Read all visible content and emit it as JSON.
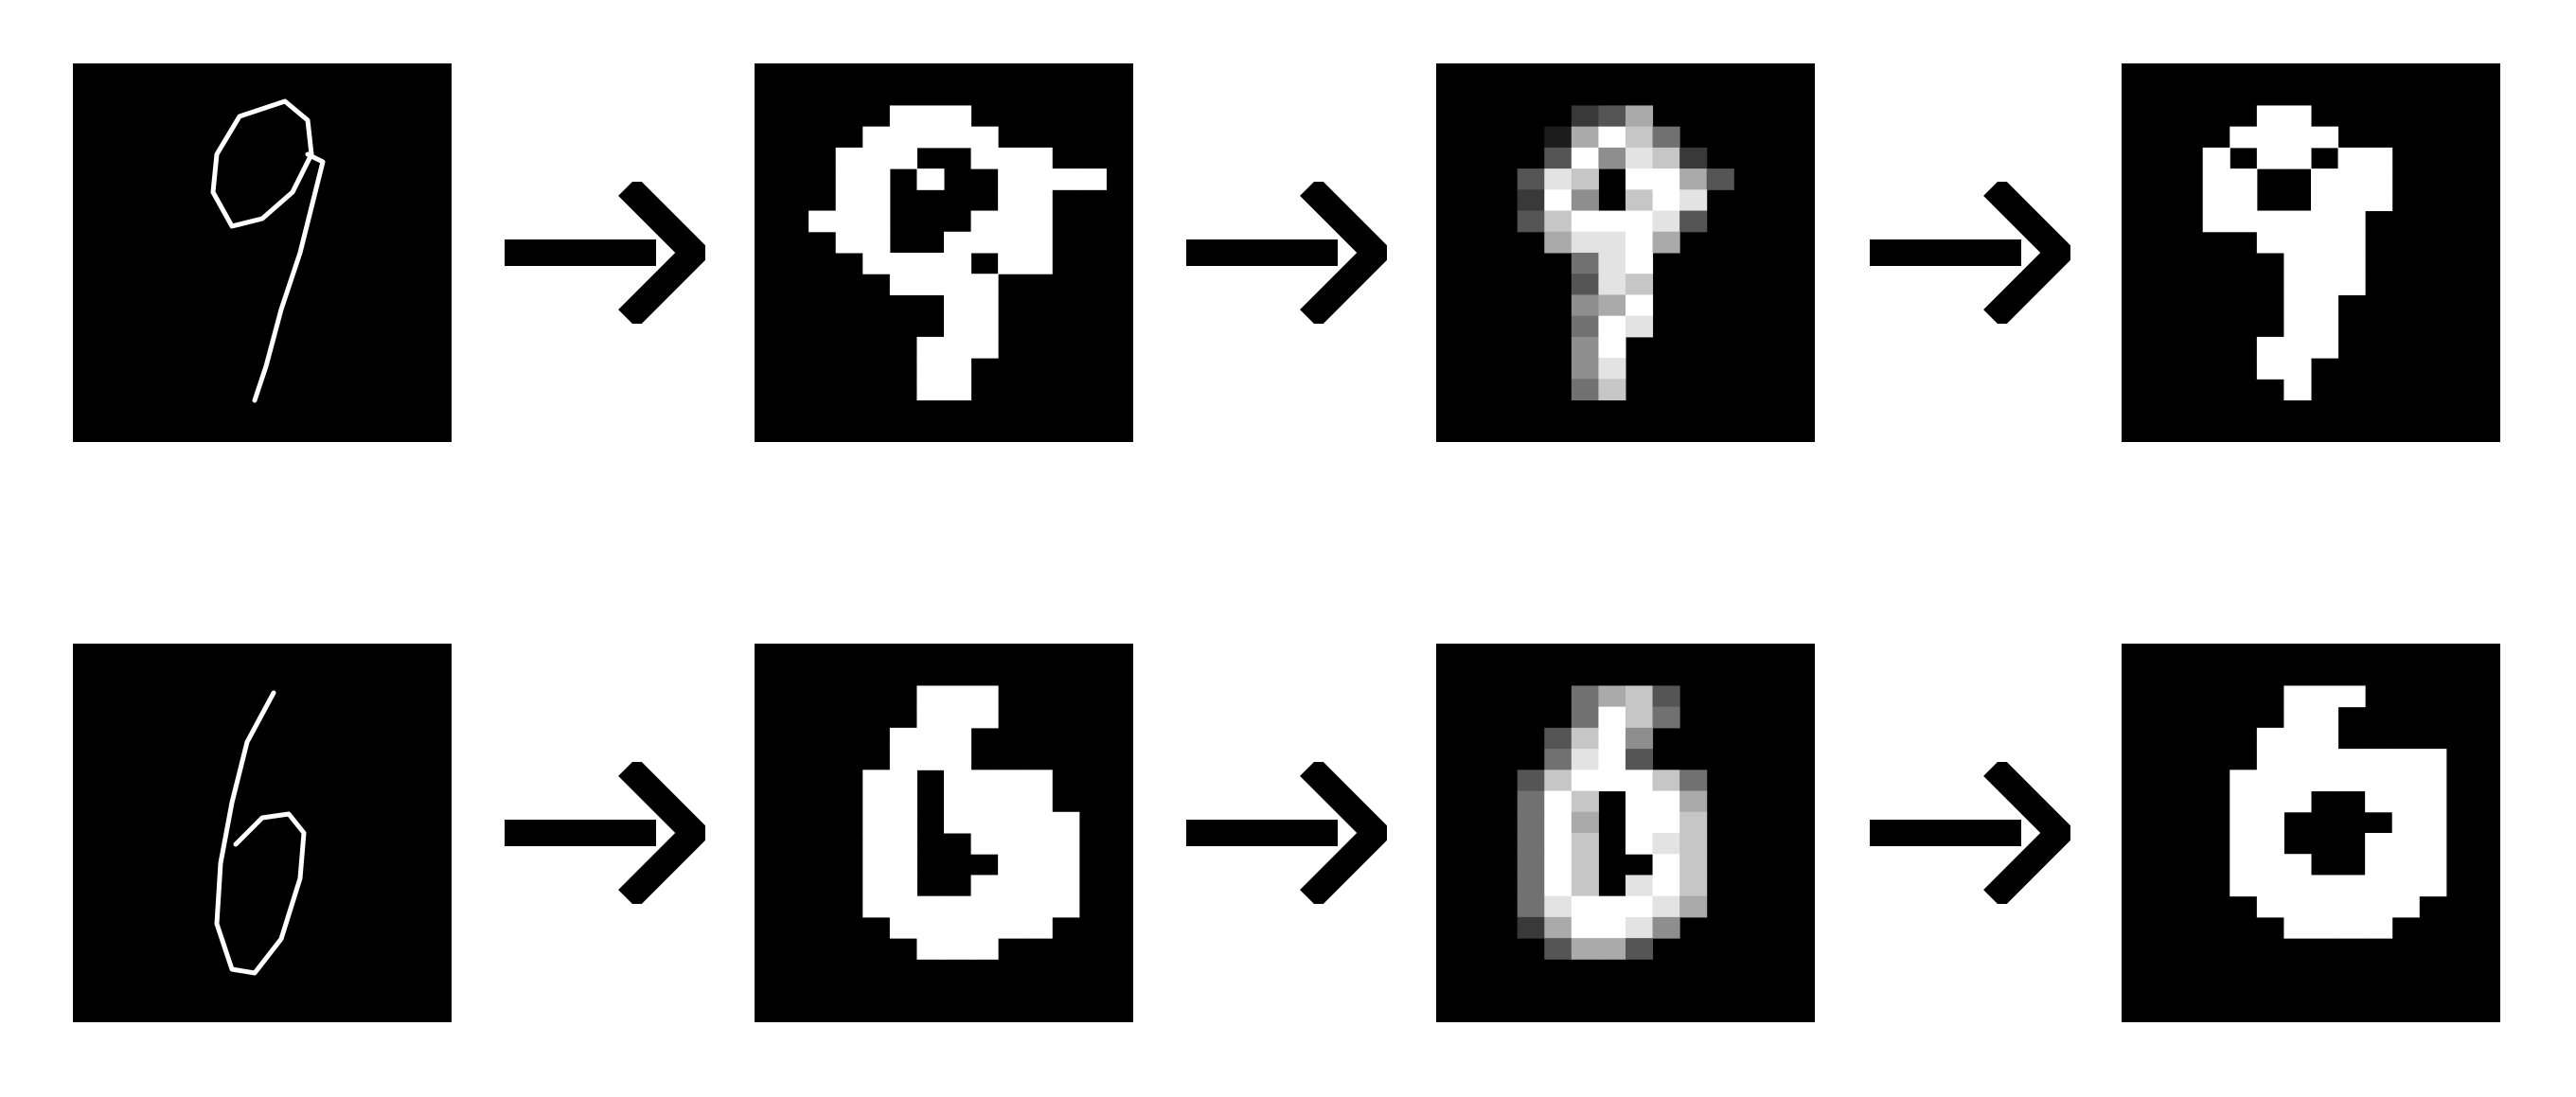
{
  "colors": {
    "background": "#ffffff",
    "panel": "#000000",
    "ink": "#ffffff",
    "arrow": "#000000"
  },
  "rows": [
    {
      "digit": "9",
      "stages": [
        "handwritten-outline",
        "binary-grid",
        "grayscale-grid",
        "binary-grid-smoothed"
      ],
      "outline_points": [
        [
          0.56,
          0.1
        ],
        [
          0.44,
          0.14
        ],
        [
          0.38,
          0.24
        ],
        [
          0.37,
          0.34
        ],
        [
          0.42,
          0.43
        ],
        [
          0.5,
          0.41
        ],
        [
          0.58,
          0.34
        ],
        [
          0.63,
          0.24
        ],
        [
          0.62,
          0.15
        ],
        [
          0.56,
          0.1
        ],
        null,
        [
          0.62,
          0.24
        ],
        [
          0.66,
          0.26
        ],
        [
          0.64,
          0.34
        ],
        [
          0.6,
          0.5
        ],
        [
          0.55,
          0.65
        ],
        [
          0.51,
          0.8
        ],
        [
          0.48,
          0.89
        ]
      ],
      "binary_grid": [
        "..............",
        "..............",
        ".....###......",
        "....#####.....",
        "...###..###...",
        "...##.#..####.",
        "...##....##...",
        "..###...###...",
        "...##..####...",
        "....####.##...",
        ".....####.....",
        ".......##.....",
        ".......##.....",
        "......###.....",
        "......##......",
        "......##......",
        "..............",
        ".............."
      ],
      "gray_grid": [
        "00000000000000",
        "00000000000000",
        "00000236000000",
        "00001697400000",
        "00003958720000",
        "00038709963000",
        "00029507980000",
        "00037999830000",
        "00006889600000",
        "00000489000000",
        "00000387000000",
        "00000569000000",
        "00000498000000",
        "00000590000000",
        "00000580000000",
        "00000470000000",
        "00000000000000",
        "00000000000000"
      ],
      "smooth_grid": [
        "..............",
        "..............",
        ".....##.......",
        "....####......",
        "...#.##.##....",
        "...##..###....",
        "...##..###....",
        "...######.....",
        ".....####.....",
        "......###.....",
        "......###.....",
        "......##......",
        "......##......",
        ".....###......",
        ".....##.......",
        "......#.......",
        "..............",
        ".............."
      ]
    },
    {
      "digit": "6",
      "stages": [
        "handwritten-outline",
        "binary-grid",
        "grayscale-grid",
        "binary-grid-smoothed"
      ],
      "outline_points": [
        [
          0.53,
          0.13
        ],
        [
          0.46,
          0.26
        ],
        [
          0.42,
          0.42
        ],
        [
          0.39,
          0.58
        ],
        [
          0.38,
          0.74
        ],
        [
          0.42,
          0.86
        ],
        [
          0.48,
          0.87
        ],
        [
          0.55,
          0.78
        ],
        [
          0.6,
          0.62
        ],
        [
          0.61,
          0.5
        ],
        [
          0.57,
          0.45
        ],
        [
          0.5,
          0.46
        ],
        [
          0.43,
          0.53
        ]
      ],
      "binary_grid": [
        "..............",
        "..............",
        "......###.....",
        "......###.....",
        ".....###......",
        ".....###......",
        "....##.####...",
        "....##.####...",
        "....##.#####..",
        "....##..####..",
        "....##...###..",
        "....##..####..",
        "....########..",
        ".....######...",
        "......###.....",
        "..............",
        "..............",
        ".............."
      ],
      "gray_grid": [
        "00000000000000",
        "00000000000000",
        "00000467300000",
        "00000497400000",
        "00003795000000",
        "00004893000000",
        "00037999740000",
        "00049709960000",
        "00049609970000",
        "00049709870000",
        "00049700970000",
        "00049708970000",
        "00048999860000",
        "00026998500000",
        "00003663000000",
        "00000000000000",
        "00000000000000",
        "00000000000000"
      ],
      "smooth_grid": [
        "..............",
        "..............",
        "......###.....",
        "......##......",
        ".....###......",
        ".....#######..",
        "....########..",
        "....###..###..",
        "....##....##..",
        "....##...###..",
        "....###..###..",
        "....########..",
        ".....######...",
        "......####....",
        "..............",
        "..............",
        "..............",
        ".............."
      ]
    }
  ]
}
